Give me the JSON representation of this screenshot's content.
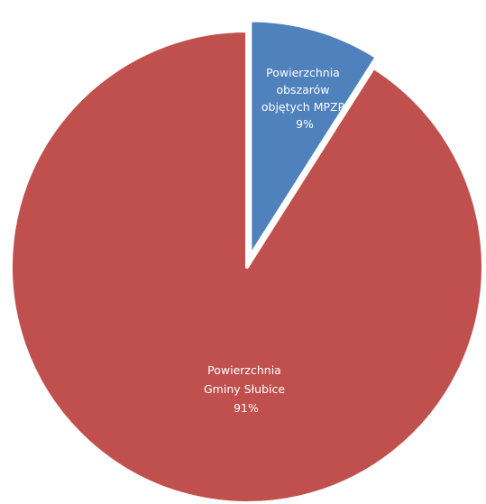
{
  "chart_data": {
    "type": "pie",
    "title": "",
    "slices": [
      {
        "label_lines": [
          "Powierzchnia",
          "obszarów",
          "objętych MPZP"
        ],
        "percent_label": "9%",
        "value": 9,
        "color": "#4f81bd",
        "exploded": true
      },
      {
        "label_lines": [
          "Powierzchnia",
          "Gminy Słubice"
        ],
        "percent_label": "91%",
        "value": 91,
        "color": "#c0504d",
        "exploded": false
      }
    ],
    "legend": "none"
  }
}
